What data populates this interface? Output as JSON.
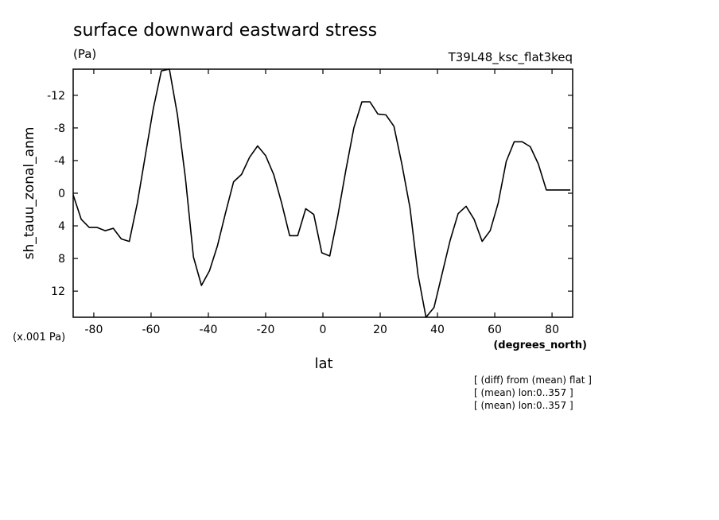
{
  "chart_data": {
    "type": "line",
    "title": "surface downward eastward stress",
    "units_label": "(Pa)",
    "experiment_label": "T39L48_ksc_flat3keq",
    "ylabel": "sh_tauu_zonal_anm",
    "xlabel": "lat",
    "x_units_label": "(degrees_north)",
    "y_scale_label": "(x.001 Pa)",
    "y_inverted": true,
    "xlim": [
      -87.2,
      87.2
    ],
    "ylim": [
      15.2,
      -15.2
    ],
    "x_ticks": [
      -80,
      -60,
      -40,
      -20,
      0,
      20,
      40,
      60,
      80
    ],
    "x_tick_labels": [
      "-80",
      "-60",
      "-40",
      "-20",
      "0",
      "20",
      "40",
      "60",
      "80"
    ],
    "y_ticks": [
      -12,
      -8,
      -4,
      0,
      4,
      8,
      12
    ],
    "y_tick_labels": [
      "-12",
      "-8",
      "-4",
      "0",
      "4",
      "8",
      "12"
    ],
    "grid": false,
    "series": [
      {
        "x": [
          -87.2,
          -84.4,
          -81.6,
          -78.8,
          -76.0,
          -73.2,
          -70.4,
          -67.6,
          -64.8,
          -62.0,
          -59.2,
          -56.4,
          -53.6,
          -50.8,
          -48.0,
          -45.2,
          -42.4,
          -39.6,
          -36.8,
          -34.0,
          -31.2,
          -28.4,
          -25.6,
          -22.8,
          -20.0,
          -17.2,
          -14.4,
          -11.6,
          -8.8,
          -6.0,
          -3.2,
          -0.4,
          2.4,
          5.2,
          8.0,
          10.8,
          13.6,
          16.4,
          19.2,
          22.0,
          24.8,
          27.6,
          30.4,
          33.2,
          36.0,
          38.8,
          41.6,
          44.4,
          47.2,
          50.0,
          52.8,
          55.6,
          58.4,
          61.2,
          64.0,
          66.8,
          69.6,
          72.4,
          75.2,
          78.0,
          80.8,
          83.6,
          86.4
        ],
        "y": [
          0.2,
          3.2,
          4.2,
          4.2,
          4.6,
          4.3,
          5.6,
          5.9,
          1.2,
          -4.6,
          -10.4,
          -15.0,
          -15.6,
          -9.6,
          -1.8,
          7.8,
          11.3,
          9.5,
          6.4,
          2.4,
          -1.4,
          -2.3,
          -4.4,
          -5.8,
          -4.6,
          -2.3,
          1.2,
          5.2,
          5.2,
          1.9,
          2.6,
          7.3,
          7.7,
          2.8,
          -2.8,
          -8.0,
          -11.2,
          -11.2,
          -9.7,
          -9.6,
          -8.2,
          -3.5,
          1.8,
          10.0,
          15.8,
          14.0,
          9.9,
          5.8,
          2.5,
          1.6,
          3.2,
          5.9,
          4.6,
          1.2,
          -3.9,
          -6.3,
          -6.3,
          -5.7,
          -3.6,
          -0.4,
          -0.4,
          -0.4,
          -0.4
        ]
      }
    ]
  },
  "annotations": [
    "[ (diff) from (mean) flat ]",
    "[ (mean) lon:0..357 ]",
    "[ (mean) lon:0..357 ]"
  ]
}
